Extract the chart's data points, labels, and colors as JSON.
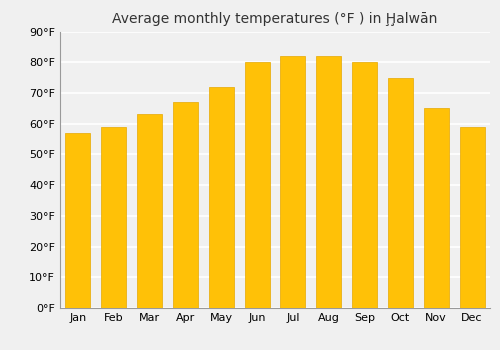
{
  "title": "Average monthly temperatures (°F ) in Ḩ̧alwān",
  "months": [
    "Jan",
    "Feb",
    "Mar",
    "Apr",
    "May",
    "Jun",
    "Jul",
    "Aug",
    "Sep",
    "Oct",
    "Nov",
    "Dec"
  ],
  "temperatures": [
    57,
    59,
    63,
    67,
    72,
    80,
    82,
    82,
    80,
    75,
    65,
    59
  ],
  "bar_color": "#FFC107",
  "bar_edge_color": "#e6a800",
  "ylim": [
    0,
    90
  ],
  "yticks": [
    0,
    10,
    20,
    30,
    40,
    50,
    60,
    70,
    80,
    90
  ],
  "ytick_labels": [
    "0°F",
    "10°F",
    "20°F",
    "30°F",
    "40°F",
    "50°F",
    "60°F",
    "70°F",
    "80°F",
    "90°F"
  ],
  "background_color": "#f0f0f0",
  "grid_color": "#ffffff",
  "title_fontsize": 10,
  "tick_fontsize": 8,
  "bar_width": 0.7
}
